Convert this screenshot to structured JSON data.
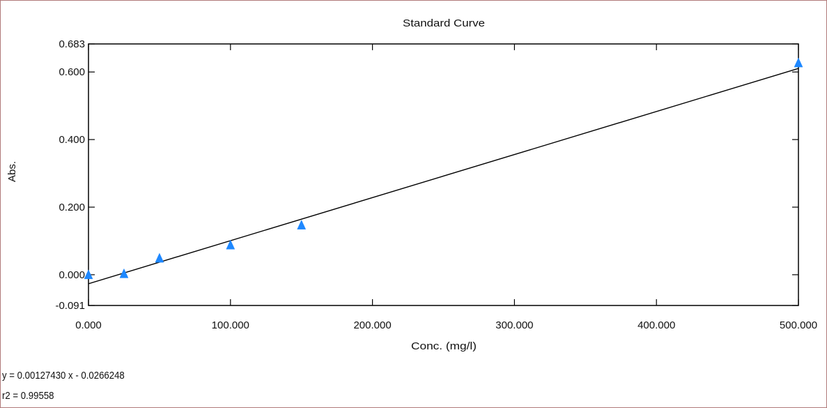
{
  "chart_data": {
    "type": "scatter",
    "title": "Standard Curve",
    "xlabel": "Conc. (mg/l)",
    "ylabel": "Abs.",
    "xlim": [
      0,
      500
    ],
    "ylim": [
      -0.091,
      0.683
    ],
    "x_ticks": [
      "0.000",
      "100.000",
      "200.000",
      "300.000",
      "400.000",
      "500.000"
    ],
    "x_tick_values": [
      0,
      100,
      200,
      300,
      400,
      500
    ],
    "y_ticks": [
      "-0.091",
      "0.000",
      "0.200",
      "0.400",
      "0.600",
      "0.683"
    ],
    "y_tick_values": [
      -0.091,
      0,
      0.2,
      0.4,
      0.6,
      0.683
    ],
    "series": [
      {
        "points": [
          {
            "x": 0,
            "y": -0.002
          },
          {
            "x": 25,
            "y": 0.001
          },
          {
            "x": 50,
            "y": 0.047
          },
          {
            "x": 100,
            "y": 0.086
          },
          {
            "x": 150,
            "y": 0.145
          },
          {
            "x": 500,
            "y": 0.625
          }
        ]
      }
    ],
    "fit": {
      "slope": 0.0012743,
      "intercept": -0.0266248
    },
    "grid": false,
    "colors": {
      "markers": "#1e88ff",
      "fit_line": "#000000",
      "frame": "#b07a7a"
    }
  },
  "equation_text": "y = 0.00127430 x - 0.0266248",
  "r2_text": "r2 = 0.99558"
}
